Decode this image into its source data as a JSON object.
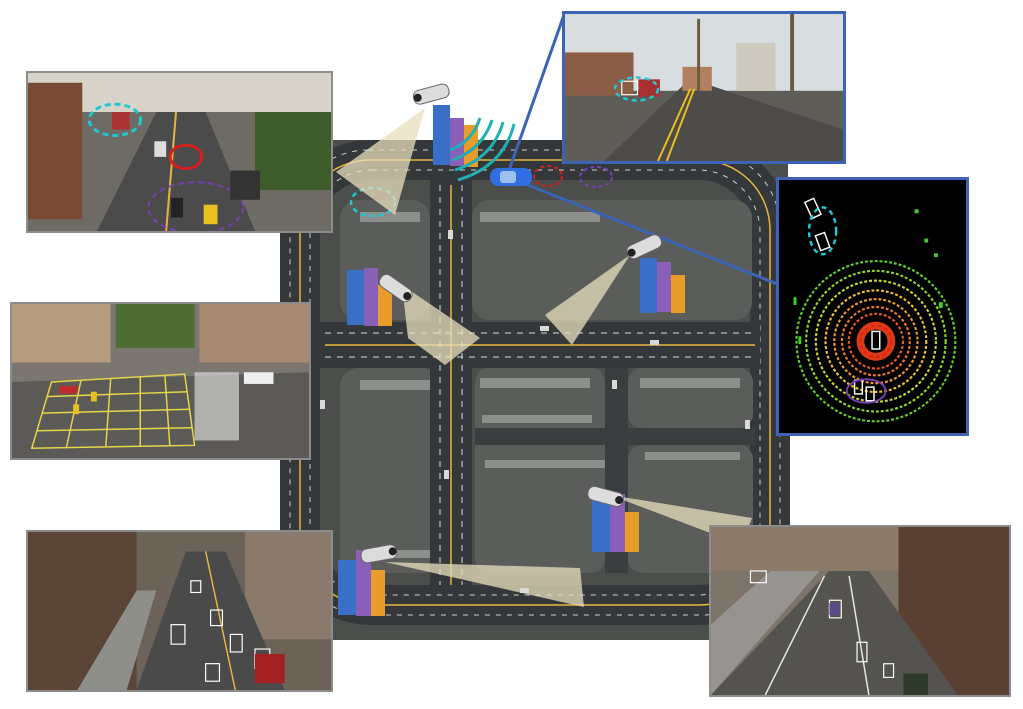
{
  "figure": {
    "description_visible_text": "",
    "colors": {
      "map_background": "#4a4d4a",
      "road": "#3a3c3c",
      "block": "#5b5e5b",
      "lane_yellow": "#e9b63c",
      "lane_white": "#e8e8e8",
      "camera_fov": "#e8dfbe",
      "cyan_marker": "#22c7d6",
      "red_marker": "#d42020",
      "purple_marker": "#7a3fb3",
      "link_blue": "#3d63b5",
      "lidar_bg": "#000000"
    }
  },
  "map": {
    "cameras": [
      {
        "name": "camera-top-left"
      },
      {
        "name": "camera-middle-left"
      },
      {
        "name": "camera-middle-right"
      },
      {
        "name": "camera-bottom-left"
      },
      {
        "name": "camera-bottom-right"
      }
    ],
    "ego_vehicle": "blue-car"
  },
  "panels": {
    "cam1": "street-view-top-left",
    "cam2": "intersection-view-middle-left",
    "cam3": "street-view-bottom-left",
    "cam4": "street-view-bottom-right",
    "ego_front": "ego-front-camera-view",
    "lidar": "lidar-point-cloud-view"
  }
}
